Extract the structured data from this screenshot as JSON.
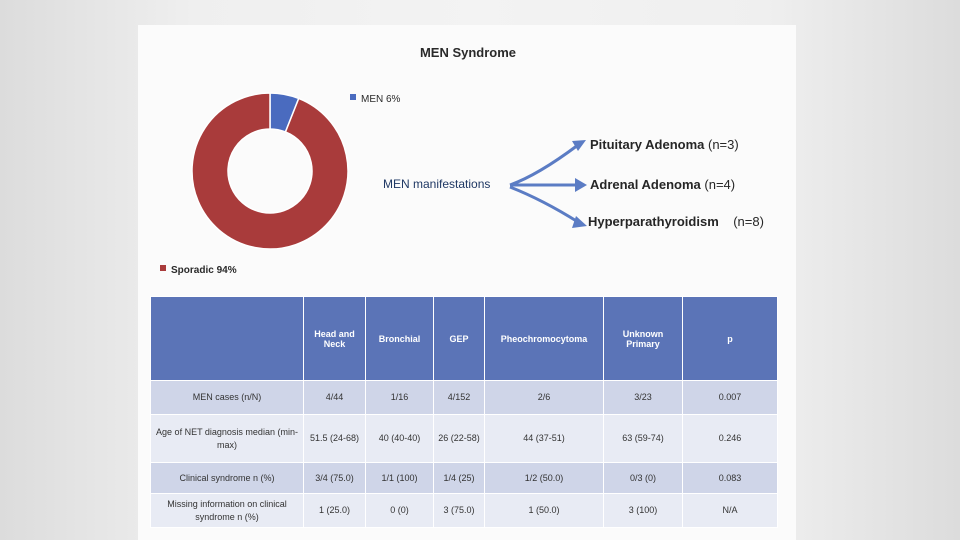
{
  "chart_data": {
    "type": "pie",
    "style": "donut",
    "title": "MEN Syndrome",
    "slices": [
      {
        "label": "MEN",
        "value": 6,
        "display": "MEN 6%",
        "color": "#4a6bbf"
      },
      {
        "label": "Sporadic",
        "value": 94,
        "display": "Sporadic 94%",
        "color": "#a93b3b"
      }
    ],
    "legend_position": "around"
  },
  "manifestations": {
    "label": "MEN manifestations",
    "items": [
      {
        "name": "Pituitary Adenoma",
        "count": "(n=3)"
      },
      {
        "name": "Adrenal Adenoma",
        "count": "(n=4)"
      },
      {
        "name": "Hyperparathyroidism",
        "count": "(n=8)"
      }
    ]
  },
  "table": {
    "headers": [
      "",
      "Head and Neck",
      "Bronchial",
      "GEP",
      "Pheochromocytoma",
      "Unknown Primary",
      "p"
    ],
    "rows": [
      [
        "MEN cases (n/N)",
        "4/44",
        "1/16",
        "4/152",
        "2/6",
        "3/23",
        "0.007"
      ],
      [
        "Age of NET diagnosis median (min-max)",
        "51.5 (24-68)",
        "40 (40-40)",
        "26 (22-58)",
        "44 (37-51)",
        "63 (59-74)",
        "0.246"
      ],
      [
        "Clinical syndrome n (%)",
        "3/4 (75.0)",
        "1/1 (100)",
        "1/4 (25)",
        "1/2 (50.0)",
        "0/3 (0)",
        "0.083"
      ],
      [
        "Missing information on clinical syndrome n (%)",
        "1 (25.0)",
        "0 (0)",
        "3 (75.0)",
        "1 (50.0)",
        "3 (100)",
        "N/A"
      ]
    ]
  }
}
